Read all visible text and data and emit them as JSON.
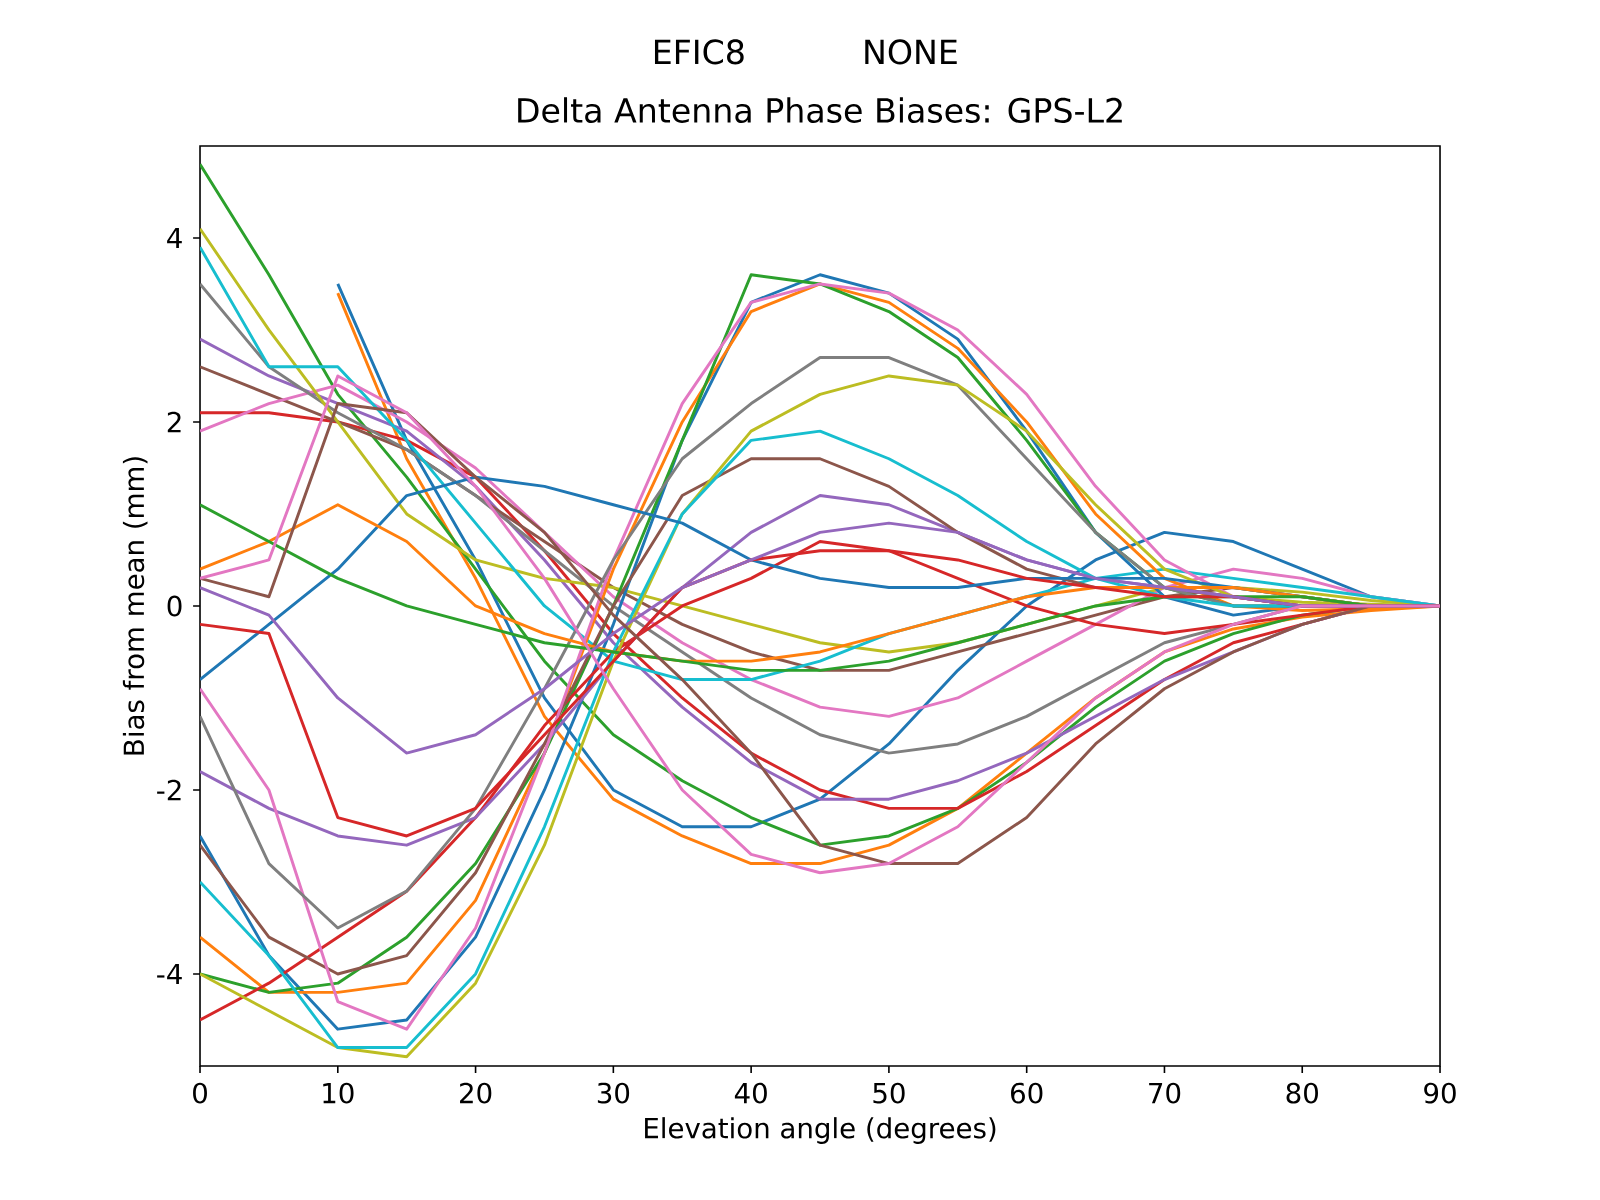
{
  "chart_data": {
    "type": "line",
    "title": "EFIC8           NONE",
    "subtitle": "Delta Antenna Phase Biases: GPS-L2",
    "xlabel": "Elevation angle (degrees)",
    "ylabel": "Bias from mean (mm)",
    "x": [
      0,
      5,
      10,
      15,
      20,
      25,
      30,
      35,
      40,
      45,
      50,
      55,
      60,
      65,
      70,
      75,
      80,
      85,
      90
    ],
    "xlim": [
      0,
      90
    ],
    "xticks": [
      0,
      10,
      20,
      30,
      40,
      50,
      60,
      70,
      80,
      90
    ],
    "ylim": [
      -5,
      5
    ],
    "yticks": [
      -4,
      -2,
      0,
      2,
      4
    ],
    "grid": false,
    "series": [
      {
        "color": "#1f77b4",
        "values": [
          null,
          null,
          3.5,
          1.8,
          0.5,
          -1.0,
          -2.0,
          -2.4,
          -2.4,
          -2.1,
          -1.5,
          -0.7,
          0.0,
          0.5,
          0.8,
          0.7,
          0.4,
          0.1,
          0
        ]
      },
      {
        "color": "#ff7f0e",
        "values": [
          null,
          null,
          3.4,
          1.6,
          0.3,
          -1.2,
          -2.1,
          -2.5,
          -2.8,
          -2.8,
          -2.6,
          -2.2,
          -1.6,
          -1.0,
          -0.5,
          -0.25,
          -0.12,
          -0.05,
          0
        ]
      },
      {
        "color": "#2ca02c",
        "values": [
          4.8,
          3.6,
          2.3,
          1.4,
          0.4,
          -0.6,
          -1.4,
          -1.9,
          -2.3,
          -2.6,
          -2.5,
          -2.2,
          -1.7,
          -1.1,
          -0.6,
          -0.3,
          -0.1,
          0.0,
          0
        ]
      },
      {
        "color": "#d62728",
        "values": [
          2.1,
          2.1,
          2.0,
          1.8,
          1.4,
          0.6,
          -0.3,
          -1.0,
          -1.6,
          -2.0,
          -2.2,
          -2.2,
          -1.8,
          -1.3,
          -0.8,
          -0.4,
          -0.2,
          0.0,
          0
        ]
      },
      {
        "color": "#9467bd",
        "values": [
          2.9,
          2.5,
          2.2,
          1.9,
          1.3,
          0.5,
          -0.4,
          -1.1,
          -1.7,
          -2.1,
          -2.1,
          -1.9,
          -1.6,
          -1.2,
          -0.8,
          -0.5,
          -0.2,
          0.0,
          0
        ]
      },
      {
        "color": "#8c564b",
        "values": [
          2.6,
          2.3,
          2.0,
          1.7,
          1.2,
          0.7,
          0.2,
          -0.2,
          -0.5,
          -0.7,
          -0.7,
          -0.5,
          -0.3,
          -0.1,
          0.1,
          0.2,
          0.1,
          0.0,
          0
        ]
      },
      {
        "color": "#e377c2",
        "values": [
          1.9,
          2.2,
          2.4,
          2.0,
          1.5,
          0.8,
          0.1,
          -0.4,
          -0.8,
          -1.1,
          -1.2,
          -1.0,
          -0.6,
          -0.2,
          0.2,
          0.4,
          0.3,
          0.1,
          0
        ]
      },
      {
        "color": "#7f7f7f",
        "values": [
          3.5,
          2.6,
          2.1,
          1.7,
          1.2,
          0.6,
          0.0,
          -0.5,
          -1.0,
          -1.4,
          -1.6,
          -1.5,
          -1.2,
          -0.8,
          -0.4,
          -0.2,
          0.0,
          0.0,
          0
        ]
      },
      {
        "color": "#bcbd22",
        "values": [
          4.1,
          3.0,
          2.0,
          1.0,
          0.5,
          0.3,
          0.2,
          0.0,
          -0.2,
          -0.4,
          -0.5,
          -0.4,
          -0.2,
          0.0,
          0.2,
          0.2,
          0.15,
          0.06,
          0
        ]
      },
      {
        "color": "#17becf",
        "values": [
          3.9,
          2.6,
          2.6,
          1.8,
          0.9,
          0.0,
          -0.6,
          -0.8,
          -0.8,
          -0.6,
          -0.3,
          -0.1,
          0.1,
          0.3,
          0.4,
          0.3,
          0.2,
          0.1,
          0
        ]
      },
      {
        "color": "#1f77b4",
        "values": [
          -2.5,
          -3.8,
          -4.6,
          -4.5,
          -3.6,
          -2.0,
          -0.2,
          1.8,
          3.3,
          3.6,
          3.4,
          2.9,
          1.9,
          0.8,
          0.1,
          -0.1,
          0.0,
          0.0,
          0
        ]
      },
      {
        "color": "#ff7f0e",
        "values": [
          -3.6,
          -4.2,
          -4.2,
          -4.1,
          -3.2,
          -1.6,
          0.4,
          2.0,
          3.2,
          3.5,
          3.3,
          2.8,
          2.0,
          1.0,
          0.3,
          0.0,
          -0.05,
          -0.03,
          0
        ]
      },
      {
        "color": "#2ca02c",
        "values": [
          -4.0,
          -4.2,
          -4.1,
          -3.6,
          -2.8,
          -1.6,
          0.0,
          1.8,
          3.6,
          3.5,
          3.2,
          2.7,
          1.8,
          0.8,
          0.2,
          0.0,
          0.0,
          0.0,
          0
        ]
      },
      {
        "color": "#d62728",
        "values": [
          -4.5,
          -4.1,
          -3.6,
          -3.1,
          -2.3,
          -1.3,
          -0.5,
          0.0,
          0.3,
          0.7,
          0.6,
          0.3,
          0.0,
          -0.2,
          -0.3,
          -0.2,
          -0.1,
          0.0,
          0
        ]
      },
      {
        "color": "#9467bd",
        "values": [
          -1.8,
          -2.2,
          -2.5,
          -2.6,
          -2.3,
          -1.5,
          -0.6,
          0.2,
          0.8,
          1.2,
          1.1,
          0.8,
          0.5,
          0.3,
          0.2,
          0.1,
          0.0,
          0.0,
          0
        ]
      },
      {
        "color": "#8c564b",
        "values": [
          -2.6,
          -3.6,
          -4.0,
          -3.8,
          -2.9,
          -1.5,
          0.0,
          1.2,
          1.6,
          1.6,
          1.3,
          0.8,
          0.4,
          0.2,
          0.2,
          0.1,
          0.0,
          0.0,
          0
        ]
      },
      {
        "color": "#e377c2",
        "values": [
          -0.9,
          -2.0,
          -4.3,
          -4.6,
          -3.5,
          -1.6,
          0.5,
          2.2,
          3.3,
          3.5,
          3.4,
          3.0,
          2.3,
          1.3,
          0.5,
          0.1,
          0.0,
          0.0,
          0
        ]
      },
      {
        "color": "#7f7f7f",
        "values": [
          -1.2,
          -2.8,
          -3.5,
          -3.1,
          -2.2,
          -0.9,
          0.5,
          1.6,
          2.2,
          2.7,
          2.7,
          2.4,
          1.6,
          0.8,
          0.2,
          0.0,
          0.0,
          0.0,
          0
        ]
      },
      {
        "color": "#bcbd22",
        "values": [
          -4.0,
          -4.4,
          -4.8,
          -4.9,
          -4.1,
          -2.6,
          -0.6,
          1.0,
          1.9,
          2.3,
          2.5,
          2.4,
          1.9,
          1.1,
          0.4,
          0.1,
          0.04,
          0.02,
          0
        ]
      },
      {
        "color": "#17becf",
        "values": [
          -3.0,
          -3.8,
          -4.8,
          -4.8,
          -4.0,
          -2.4,
          -0.5,
          1.0,
          1.8,
          1.9,
          1.6,
          1.2,
          0.7,
          0.3,
          0.1,
          0.0,
          0.0,
          0.0,
          0
        ]
      },
      {
        "color": "#1f77b4",
        "values": [
          -0.8,
          -0.2,
          0.4,
          1.2,
          1.4,
          1.3,
          1.1,
          0.9,
          0.5,
          0.3,
          0.2,
          0.2,
          0.3,
          0.3,
          0.3,
          0.2,
          0.1,
          0.0,
          0
        ]
      },
      {
        "color": "#ff7f0e",
        "values": [
          0.4,
          0.7,
          1.1,
          0.7,
          0.0,
          -0.3,
          -0.5,
          -0.6,
          -0.6,
          -0.5,
          -0.3,
          -0.1,
          0.1,
          0.2,
          0.2,
          0.2,
          0.1,
          0.0,
          0
        ]
      },
      {
        "color": "#2ca02c",
        "values": [
          1.1,
          0.7,
          0.3,
          0.0,
          -0.2,
          -0.4,
          -0.5,
          -0.6,
          -0.7,
          -0.7,
          -0.6,
          -0.4,
          -0.2,
          0.0,
          0.1,
          0.1,
          0.1,
          0.0,
          0
        ]
      },
      {
        "color": "#d62728",
        "values": [
          -0.2,
          -0.3,
          -2.3,
          -2.5,
          -2.2,
          -1.4,
          -0.6,
          0.2,
          0.5,
          0.6,
          0.6,
          0.5,
          0.3,
          0.2,
          0.1,
          0.1,
          0.0,
          0.0,
          0
        ]
      },
      {
        "color": "#9467bd",
        "values": [
          0.2,
          -0.1,
          -1.0,
          -1.6,
          -1.4,
          -0.9,
          -0.3,
          0.2,
          0.5,
          0.8,
          0.9,
          0.8,
          0.5,
          0.3,
          0.2,
          0.1,
          0.0,
          0.0,
          0
        ]
      },
      {
        "color": "#8c564b",
        "values": [
          0.3,
          0.1,
          2.2,
          2.1,
          1.4,
          0.8,
          -0.1,
          -0.8,
          -1.6,
          -2.6,
          -2.8,
          -2.8,
          -2.3,
          -1.5,
          -0.9,
          -0.5,
          -0.2,
          0.0,
          0
        ]
      },
      {
        "color": "#e377c2",
        "values": [
          0.3,
          0.5,
          2.5,
          2.1,
          1.3,
          0.3,
          -0.9,
          -2.0,
          -2.7,
          -2.9,
          -2.8,
          -2.4,
          -1.7,
          -1.0,
          -0.5,
          -0.2,
          0.0,
          0.0,
          0
        ]
      }
    ]
  }
}
